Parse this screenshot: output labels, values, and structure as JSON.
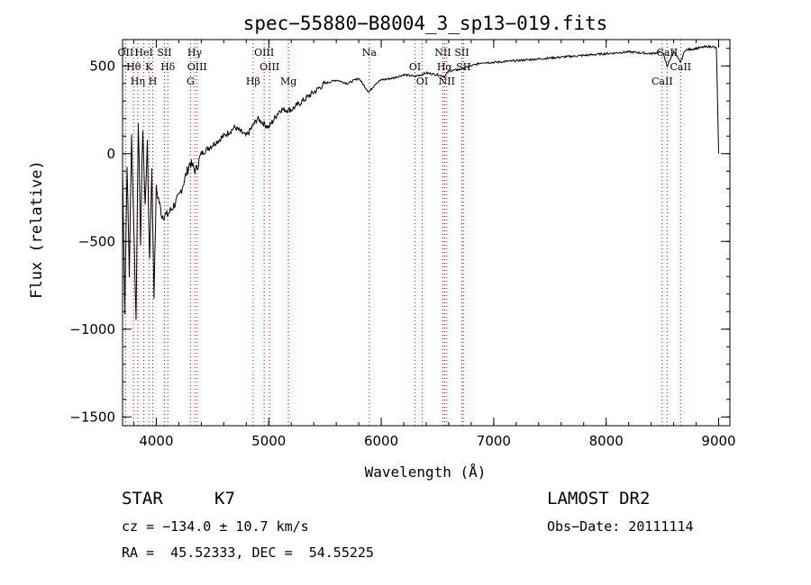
{
  "chart_data": {
    "type": "line",
    "title": "spec−55880−B8004_3_sp13−019.fits",
    "xlabel": "Wavelength (Å)",
    "ylabel": "Flux (relative)",
    "xlim": [
      3700,
      9100
    ],
    "ylim": [
      -1550,
      650
    ],
    "xticks": [
      4000,
      5000,
      6000,
      7000,
      8000,
      9000
    ],
    "xtick_labels": [
      "4000",
      "5000",
      "6000",
      "7000",
      "8000",
      "9000"
    ],
    "yticks": [
      -1500,
      -1000,
      -500,
      0,
      500
    ],
    "ytick_labels": [
      "−1500",
      "−1000",
      "−500",
      "0",
      "500"
    ],
    "grid": false,
    "series": [
      {
        "x": [
          3700,
          3720,
          3740,
          3760,
          3780,
          3800,
          3820,
          3840,
          3860,
          3880,
          3900,
          3920,
          3940,
          3960,
          3980,
          4000,
          4050,
          4100,
          4150,
          4200,
          4250,
          4300,
          4350,
          4400,
          4500,
          4600,
          4700,
          4800,
          4900,
          5000,
          5100,
          5200,
          5300,
          5400,
          5500,
          5600,
          5700,
          5800,
          5890,
          5950,
          6000,
          6100,
          6200,
          6300,
          6400,
          6500,
          6563,
          6600,
          6700,
          6800,
          6900,
          7000,
          7200,
          7400,
          7600,
          7800,
          8000,
          8200,
          8400,
          8500,
          8542,
          8600,
          8662,
          8700,
          8800,
          8900,
          8950,
          8980,
          9000
        ],
        "y": [
          -80,
          -900,
          -50,
          -700,
          100,
          -400,
          -950,
          200,
          -500,
          150,
          -300,
          50,
          -600,
          -100,
          -800,
          -200,
          -350,
          -350,
          -300,
          -250,
          -150,
          -50,
          -100,
          0,
          50,
          100,
          150,
          100,
          200,
          150,
          250,
          250,
          300,
          350,
          400,
          420,
          400,
          430,
          350,
          400,
          420,
          430,
          450,
          440,
          460,
          450,
          440,
          470,
          480,
          500,
          520,
          520,
          530,
          540,
          550,
          560,
          570,
          580,
          570,
          580,
          500,
          580,
          520,
          590,
          600,
          610,
          610,
          600,
          0
        ]
      }
    ],
    "lines": [
      {
        "label": "OII",
        "wavelength": 3727
      },
      {
        "label": "Hθ",
        "wavelength": 3798
      },
      {
        "label": "Hη",
        "wavelength": 3835
      },
      {
        "label": "HeI",
        "wavelength": 3889
      },
      {
        "label": "K",
        "wavelength": 3934
      },
      {
        "label": "H",
        "wavelength": 3969
      },
      {
        "label": "SII",
        "wavelength": 4072
      },
      {
        "label": "Hδ",
        "wavelength": 4102
      },
      {
        "label": "G",
        "wavelength": 4304
      },
      {
        "label": "Hγ",
        "wavelength": 4341
      },
      {
        "label": "OIII",
        "wavelength": 4363
      },
      {
        "label": "Hβ",
        "wavelength": 4861
      },
      {
        "label": "OIII",
        "wavelength": 4959
      },
      {
        "label": "OIII",
        "wavelength": 5007
      },
      {
        "label": "Mg",
        "wavelength": 5175
      },
      {
        "label": "Na",
        "wavelength": 5894
      },
      {
        "label": "OI",
        "wavelength": 6300
      },
      {
        "label": "OI",
        "wavelength": 6364
      },
      {
        "label": "NII",
        "wavelength": 6548
      },
      {
        "label": "Hα",
        "wavelength": 6563
      },
      {
        "label": "NII",
        "wavelength": 6583
      },
      {
        "label": "SII",
        "wavelength": 6716
      },
      {
        "label": "SII",
        "wavelength": 6731
      },
      {
        "label": "CaII",
        "wavelength": 8498
      },
      {
        "label": "CaII",
        "wavelength": 8542
      },
      {
        "label": "CaII",
        "wavelength": 8662
      }
    ],
    "line_color": "#cc0000"
  },
  "info": {
    "class_label": "STAR",
    "subclass": "K7",
    "survey": "LAMOST DR2",
    "cz": "cz = −134.0 ± 10.7 km/s",
    "obs_date": "Obs−Date: 20111114",
    "coords": "RA =  45.52333, DEC =  54.55225"
  }
}
